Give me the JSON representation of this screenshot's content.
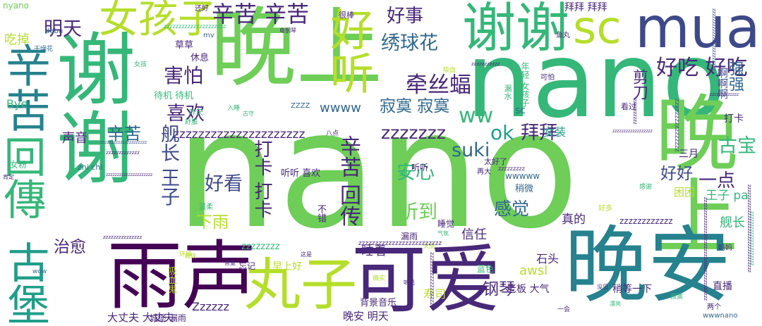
{
  "colors": {
    "background": "#ffffff",
    "palette": [
      "#440154",
      "#482878",
      "#3e4989",
      "#31688e",
      "#26828e",
      "#1f9e89",
      "#35b779",
      "#6ece58",
      "#b5de2b",
      "#fde725"
    ]
  },
  "words": [
    {
      "text": "nano",
      "color": "#6ece58"
    },
    {
      "text": "nano",
      "color": "#35b779"
    },
    {
      "text": "晚上",
      "color": "#6ece58"
    },
    {
      "text": "晚上",
      "color": "#6ece58"
    },
    {
      "text": "谢谢",
      "color": "#35b779"
    },
    {
      "text": "谢谢",
      "color": "#35b779"
    },
    {
      "text": "晚安",
      "color": "#26828e"
    },
    {
      "text": "雨声",
      "color": "#440154"
    },
    {
      "text": "可爱",
      "color": "#482878"
    },
    {
      "text": "丸子",
      "color": "#b5de2b"
    },
    {
      "text": "古堡",
      "color": "#1f9e89"
    },
    {
      "text": "回傳",
      "color": "#35b779"
    },
    {
      "text": "辛苦",
      "color": "#26828e"
    },
    {
      "text": "mua",
      "color": "#3e4989"
    },
    {
      "text": "sc",
      "color": "#b5de2b"
    },
    {
      "text": "女孩子",
      "color": "#b5de2b"
    },
    {
      "text": "好听",
      "color": "#b5de2b"
    },
    {
      "text": "辛苦 辛苦",
      "color": "#482878"
    },
    {
      "text": "好事",
      "color": "#482878"
    },
    {
      "text": "好吃 好吃",
      "color": "#482878"
    },
    {
      "text": "明天",
      "color": "#482878"
    },
    {
      "text": "绣球花",
      "color": "#31688e"
    },
    {
      "text": "牵丝蝠",
      "color": "#482878"
    },
    {
      "text": "ww",
      "color": "#35b779"
    },
    {
      "text": "害怕",
      "color": "#482878"
    },
    {
      "text": "喜欢",
      "color": "#482878"
    },
    {
      "text": "寂寞 寂寞",
      "color": "#31688e"
    },
    {
      "text": "wwww",
      "color": "#31688e"
    },
    {
      "text": "辛苦",
      "color": "#31688e"
    },
    {
      "text": "zzzzzzzzzzzzzzzzzzzzz",
      "color": "#482878"
    },
    {
      "text": "zzzzzzz",
      "color": "#482878"
    },
    {
      "text": "ok",
      "color": "#1f9e89"
    },
    {
      "text": "suki",
      "color": "#31688e"
    },
    {
      "text": "舰长 王子",
      "color": "#3e4989"
    },
    {
      "text": "打卡 打卡",
      "color": "#482878"
    },
    {
      "text": "辛苦 回传",
      "color": "#482878"
    },
    {
      "text": "好看",
      "color": "#3e4989"
    },
    {
      "text": "安心",
      "color": "#35b779"
    },
    {
      "text": "听到",
      "color": "#6ece58"
    },
    {
      "text": "感觉",
      "color": "#31688e"
    },
    {
      "text": "拜拜",
      "color": "#482878"
    },
    {
      "text": "好好",
      "color": "#3e4989"
    },
    {
      "text": "古宝",
      "color": "#35b779"
    },
    {
      "text": "一点",
      "color": "#482878"
    },
    {
      "text": "下雨",
      "color": "#b5de2b"
    },
    {
      "text": "治愈",
      "color": "#482878"
    },
    {
      "text": "睡着",
      "color": "#482878"
    },
    {
      "text": "信任",
      "color": "#482878"
    },
    {
      "text": "声音",
      "color": "#482878"
    },
    {
      "text": "吃掉",
      "color": "#b5de2b"
    },
    {
      "text": "Bye",
      "color": "#35b779"
    },
    {
      "text": "强强",
      "color": "#31688e"
    },
    {
      "text": "啊啊啊",
      "color": "#3e4989"
    },
    {
      "text": "剪刀",
      "color": "#482878"
    },
    {
      "text": "舰长",
      "color": "#35b779"
    },
    {
      "text": "打卡",
      "color": "#482878"
    },
    {
      "text": "真的",
      "color": "#482878"
    },
    {
      "text": "王子 pa",
      "color": "#35b779"
    },
    {
      "text": "困困",
      "color": "#b5de2b"
    },
    {
      "text": "女装",
      "color": "#1f9e89"
    },
    {
      "text": "三月",
      "color": "#482878"
    },
    {
      "text": "拜拜 拜拜",
      "color": "#482878"
    },
    {
      "text": "sc",
      "color": "#31688e"
    },
    {
      "text": "石头",
      "color": "#482878"
    },
    {
      "text": "awsl",
      "color": "#b5de2b"
    },
    {
      "text": "钢琴",
      "color": "#482878"
    },
    {
      "text": "寿司",
      "color": "#b5de2b"
    },
    {
      "text": "老板 大气",
      "color": "#482878"
    },
    {
      "text": "稍等一下",
      "color": "#482878"
    },
    {
      "text": "直播",
      "color": "#482878"
    },
    {
      "text": "晚安 明天",
      "color": "#482878"
    },
    {
      "text": "背景音乐",
      "color": "#482878"
    },
    {
      "text": "大丈夫 大丈夫",
      "color": "#482878"
    },
    {
      "text": "Zzzzzz",
      "color": "#482878"
    },
    {
      "text": "早上好",
      "color": "#b5de2b"
    },
    {
      "text": "草草",
      "color": "#482878"
    },
    {
      "text": "休息",
      "color": "#482878"
    },
    {
      "text": "待机 待机",
      "color": "#35b779"
    },
    {
      "text": "wwwww",
      "color": "#31688e"
    },
    {
      "text": "稍微",
      "color": "#31688e"
    },
    {
      "text": "听听 喜欢",
      "color": "#482878"
    },
    {
      "text": "听听",
      "color": "#482878"
    },
    {
      "text": "不错",
      "color": "#482878"
    },
    {
      "text": "zzzzzzzzzzzz",
      "color": "#482878"
    },
    {
      "text": "zzzzzzzz",
      "color": "#35b779"
    },
    {
      "text": "睡觉",
      "color": "#482878"
    },
    {
      "text": "漏雨",
      "color": "#482878"
    },
    {
      "text": "蓝色",
      "color": "#35b779"
    },
    {
      "text": "忘记",
      "color": "#482878"
    },
    {
      "text": "吸血鬼",
      "color": "#b5de2b"
    },
    {
      "text": "城堡 漏雨",
      "color": "#482878"
    },
    {
      "text": "女粉",
      "color": "#35b779"
    },
    {
      "text": "zhi chi",
      "color": "#31688e"
    },
    {
      "text": "nyano",
      "color": "#6ece58"
    },
    {
      "text": "debu",
      "color": "#31688e"
    },
    {
      "text": "mv",
      "color": "#31688e"
    },
    {
      "text": "很棒",
      "color": "#482878"
    },
    {
      "text": "还好",
      "color": "#482878"
    },
    {
      "text": "看过",
      "color": "#482878"
    },
    {
      "text": "可怕",
      "color": "#482878"
    },
    {
      "text": "年轻 女孩子",
      "color": "#35b779"
    },
    {
      "text": "漏水",
      "color": "#35b779"
    },
    {
      "text": "太好了",
      "color": "#482878"
    },
    {
      "text": "再大",
      "color": "#482878"
    },
    {
      "text": "鱼丸",
      "color": "#482878"
    },
    {
      "text": "干燥花",
      "color": "#31688e"
    },
    {
      "text": "女孩",
      "color": "#35b779"
    },
    {
      "text": "昨天",
      "color": "#35b779"
    },
    {
      "text": "入睡",
      "color": "#35b779"
    },
    {
      "text": "温柔",
      "color": "#35b779"
    },
    {
      "text": "好多",
      "color": "#b5de2b"
    },
    {
      "text": "感谢",
      "color": "#35b779"
    },
    {
      "text": "两个",
      "color": "#482878"
    },
    {
      "text": "wwwnano",
      "color": "#31688e"
    },
    {
      "text": "一会",
      "color": "#482878"
    },
    {
      "text": "舒服",
      "color": "#35b779"
    },
    {
      "text": "肯定",
      "color": "#482878"
    },
    {
      "text": "环掉",
      "color": "#b5de2b"
    },
    {
      "text": "wow",
      "color": "#31688e"
    },
    {
      "text": "八点",
      "color": "#482878"
    },
    {
      "text": "吸血",
      "color": "#b5de2b"
    },
    {
      "text": "电钢琴",
      "color": "#482878"
    },
    {
      "text": "超级",
      "color": "#b5de2b"
    },
    {
      "text": "音量",
      "color": "#482878"
    },
    {
      "text": "没见",
      "color": "#482878"
    },
    {
      "text": "漂亮",
      "color": "#35b779"
    },
    {
      "text": "寂寞",
      "color": "#35b779"
    },
    {
      "text": "确实",
      "color": "#b5de2b"
    },
    {
      "text": "听见",
      "color": "#482878"
    },
    {
      "text": "工作",
      "color": "#35b779"
    },
    {
      "text": "气氛",
      "color": "#35b779"
    },
    {
      "text": "古守",
      "color": "#35b779"
    },
    {
      "text": "这是",
      "color": "#482878"
    },
    {
      "text": "天使",
      "color": "#b5de2b"
    },
    {
      "text": "妈妈",
      "color": "#482878"
    },
    {
      "text": "ZZZZ",
      "color": "#31688e"
    },
    {
      "text": "zzzzzzzzz",
      "color": "#482878"
    },
    {
      "text": "zzzzzzzzzzzzzzzzzzzzz",
      "color": "#35b779"
    },
    {
      "text": "zzzzzzzzzzzzzzzzzzzzzzzzz",
      "color": "#482878"
    },
    {
      "text": "zzzzzzzzzzzzzzz",
      "color": "#482878"
    },
    {
      "text": "zzzzzzzzzzzzz",
      "color": "#482878"
    },
    {
      "text": "zzzzzzzzzzzzzzzzzzzzz",
      "color": "#3e4989"
    },
    {
      "text": "zzzzzzzzzzzzzzzz",
      "color": "#3e4989"
    },
    {
      "text": "zzzzzzzzzzzzzzzzzzzzzzzzzzzzzzzzzz",
      "color": "#482878"
    },
    {
      "text": "zzzzzzzzzzzzzzzzzzz",
      "color": "#482878"
    },
    {
      "text": "zzzzzzzzzz",
      "color": "#482878"
    },
    {
      "text": "zzzzzzzzzzz",
      "color": "#482878"
    },
    {
      "text": "zzzzzzzzzzzzzzzzzzzzzzzz",
      "color": "#3e4989"
    },
    {
      "text": "zzzzzzzzzzzzzzzzzz",
      "color": "#482878"
    },
    {
      "text": "zzzzzzzzzzzzz",
      "color": "#482878"
    },
    {
      "text": "zzzzzzzzzzzzzzzzzzzzzzzzzzzzzzzzzzzzzzzz",
      "color": "#482878"
    },
    {
      "text": "zzzzzzzzzzzzzzzzzzzzz",
      "color": "#35b779"
    },
    {
      "text": "zzzzzzzzzzzzzzzzzzzzz",
      "color": "#482878"
    }
  ]
}
